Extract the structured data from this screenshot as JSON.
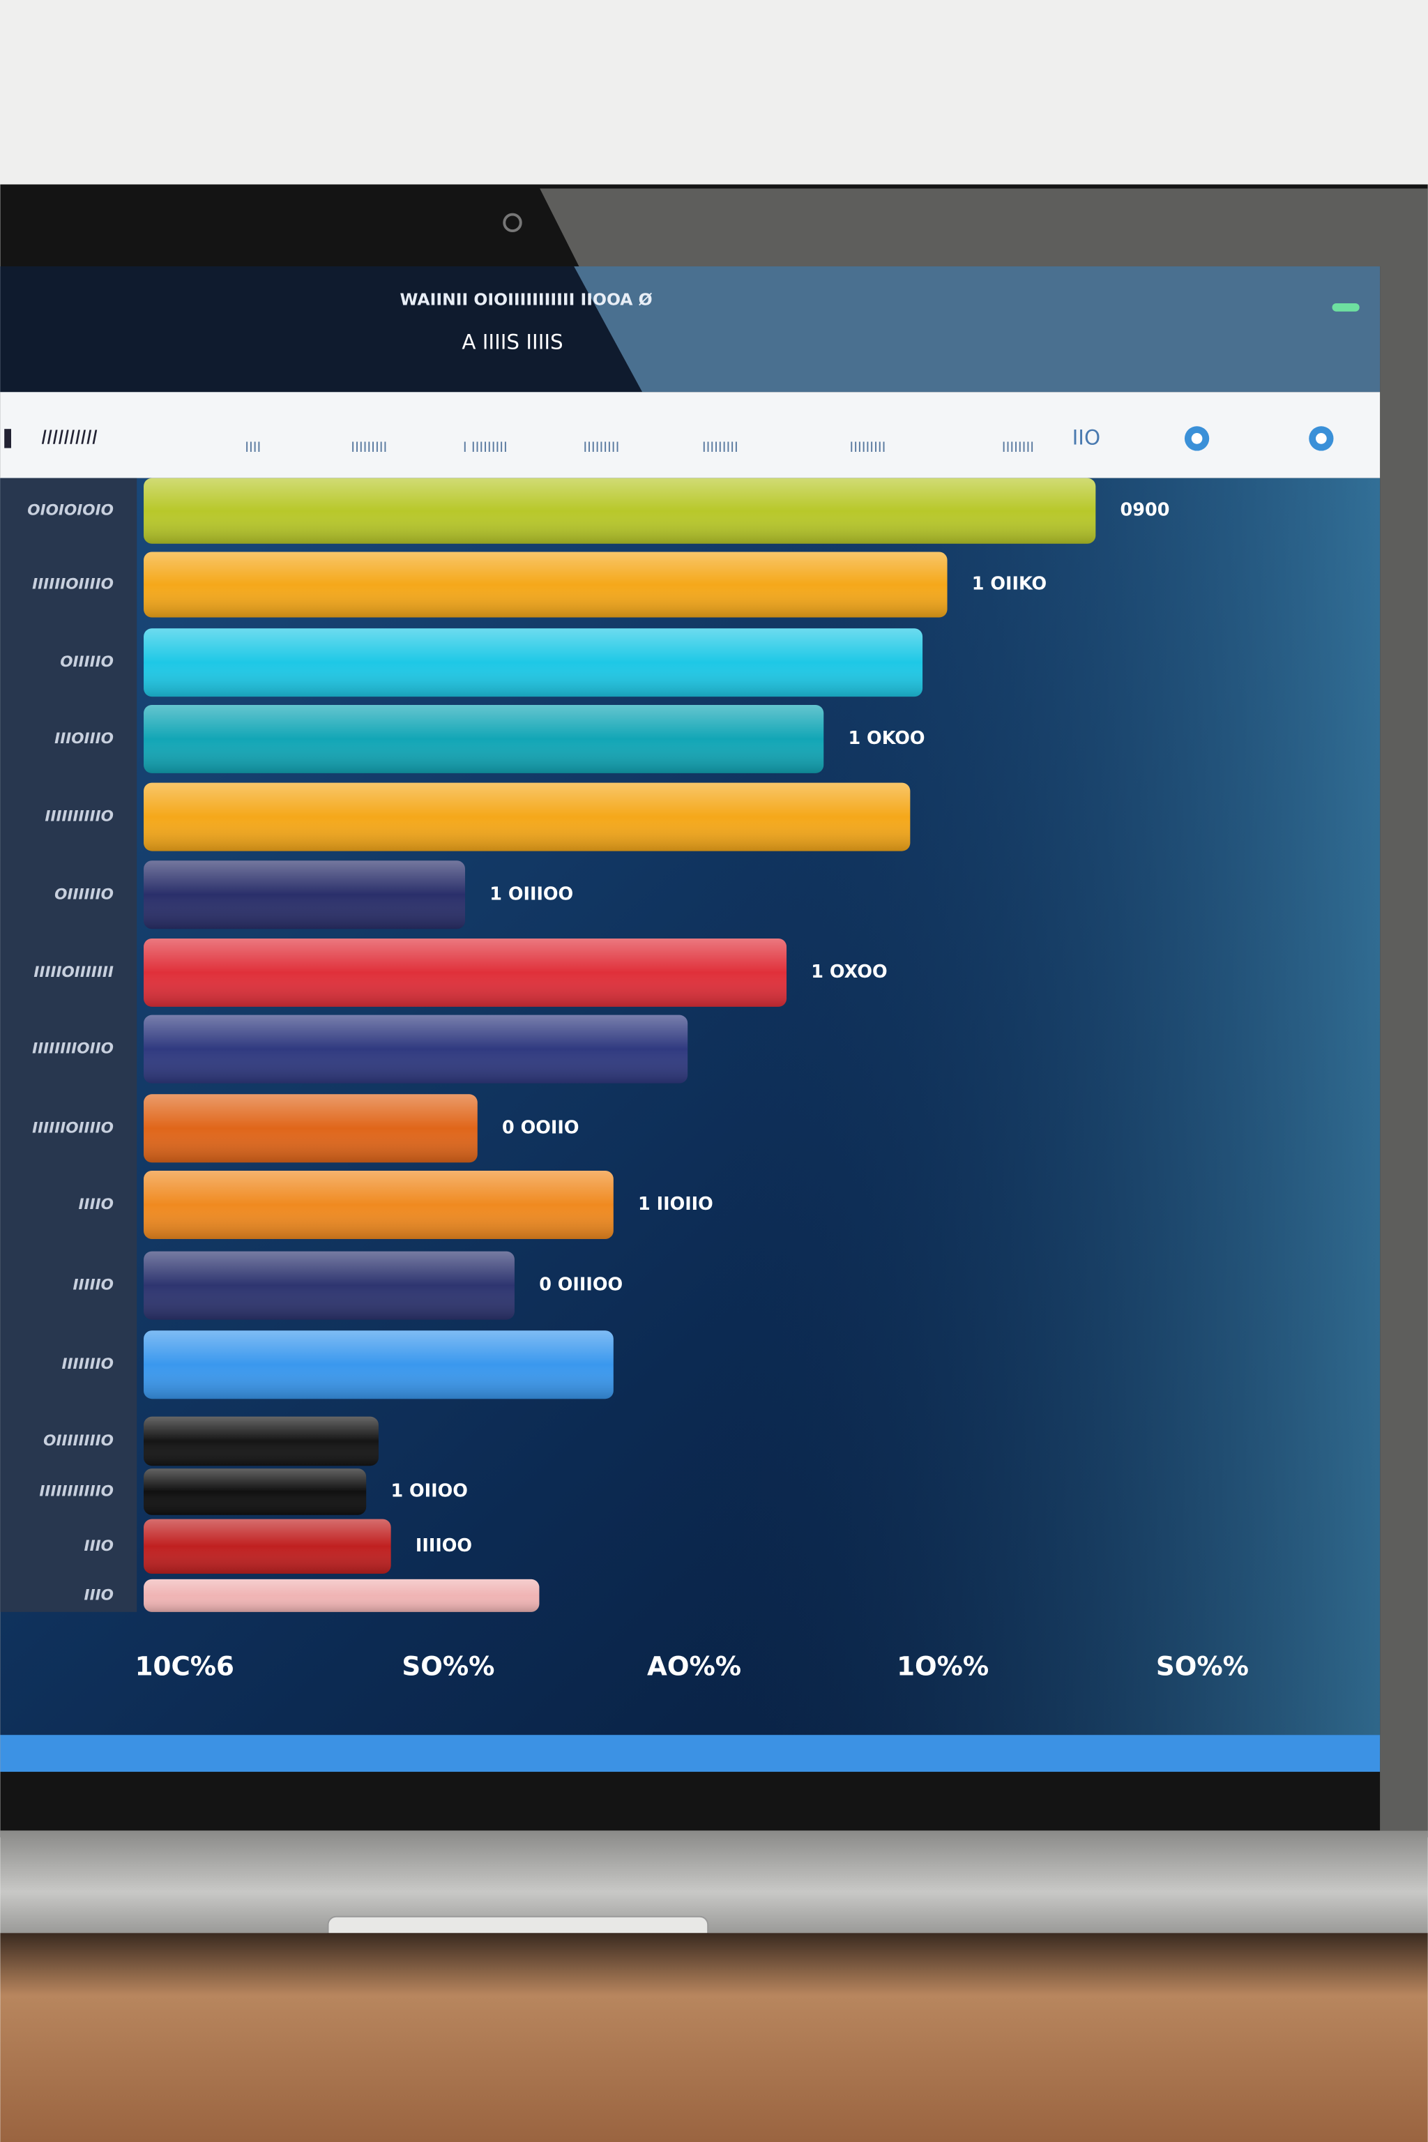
{
  "header": {
    "title": "WAIINII OIOIIIIIIIIIII IIOOA Ø",
    "subtitle": "A IIIIS IIIIS"
  },
  "menu": {
    "label": "IIIIIIIIII",
    "tabs": [
      "IIII",
      "IIIIIIIII",
      "I IIIIIIIII",
      "IIIIIIIII",
      "IIIIIIIII",
      "IIIIIIIII",
      "IIIIIIII"
    ],
    "right": "IIO"
  },
  "chart_data": {
    "type": "barh",
    "categories": [
      "OIOIOIOIO",
      "IIIIIIOIIIIO",
      "OIIIIIO",
      "IIIOIIIO",
      "IIIIIIIIIIO",
      "OIIIIIIO",
      "IIIIIOIIIIIII",
      "IIIIIIIIOIIO",
      "IIIIIIOIIIIO",
      "IIIIO",
      "IIIIIO",
      "IIIIIIIO",
      "OIIIIIIIIO",
      "IIIIIIIIIIIO",
      "IIIO",
      "IIIO"
    ],
    "values": [
      77,
      65,
      63,
      55,
      62,
      26,
      52,
      44,
      27,
      38,
      30,
      38,
      19,
      18,
      20,
      32
    ],
    "value_labels": [
      "0900",
      "1 OIIKO",
      null,
      "1 OKOO",
      null,
      "1 OIIIOO",
      "1 OXOO",
      null,
      "0 OOIIO",
      "1 IIOIIO",
      "0 OIIIOO",
      null,
      null,
      "1 OIIOO",
      "IIIIOO",
      null
    ],
    "colors": [
      "#b8c82a",
      "#f5a81a",
      "#1ec8e6",
      "#12a6b6",
      "#f5a81a",
      "#2a2f6a",
      "#e0303a",
      "#303a80",
      "#e0661a",
      "#f08a20",
      "#2e3570",
      "#3a98ee",
      "#151515",
      "#101010",
      "#c02020",
      "#f0b4b4"
    ],
    "xlim": [
      0,
      100
    ],
    "x_axis_labels": [
      "10C%6",
      "SO%%",
      "AO%%",
      "1O%%",
      "SO%%"
    ]
  }
}
